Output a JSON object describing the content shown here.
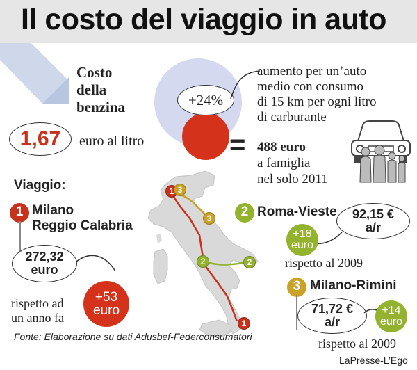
{
  "title": "Il costo del viaggio in auto",
  "fuel": {
    "heading_line1": "Costo",
    "heading_line2": "della",
    "heading_line3": "benzina",
    "price": "1,67",
    "price_unit": "euro al litro"
  },
  "increase": {
    "percent": "+24%",
    "desc_line1": "aumento per un’auto",
    "desc_line2": "medio con consumo",
    "desc_line3": "di 15 km per ogni litro",
    "desc_line4": "di carburante",
    "equals": "=",
    "amount": "488 euro",
    "amount_line2": "a famiglia",
    "amount_line3": "nel solo 2011"
  },
  "trips": {
    "heading": "Viaggio:",
    "trip1": {
      "number": "1",
      "from": "Milano",
      "to": "Reggio Calabria",
      "cost_line1": "272,32",
      "cost_line2": "euro",
      "compare_line1": "rispetto ad",
      "compare_line2": "un anno fa",
      "delta_line1": "+53",
      "delta_line2": "euro"
    },
    "trip2": {
      "number": "2",
      "name": "Roma-Vieste",
      "cost_line1": "92,15 €",
      "cost_line2": "a/r",
      "delta_line1": "+18",
      "delta_line2": "euro",
      "compare": "rispetto al 2009"
    },
    "trip3": {
      "number": "3",
      "name": "Milano-Rimini",
      "cost_line1": "71,72 €",
      "cost_line2": "a/r",
      "delta_line1": "+14",
      "delta_line2": "euro",
      "compare": "rispetto al 2009"
    }
  },
  "map_pins": {
    "milano_a": "1",
    "milano_b": "3",
    "rimini": "3",
    "roma": "2",
    "vieste": "2",
    "reggio": "1"
  },
  "source": "Fonte: Elaborazione su dati Adusbef-Federconsumatori",
  "credit": "LaPresse-L’Ego",
  "colors": {
    "red": "#c7321c",
    "green": "#93b22d",
    "gold": "#c9a227",
    "lavender": "#d5d9f0",
    "map": "#d9d9d9"
  }
}
